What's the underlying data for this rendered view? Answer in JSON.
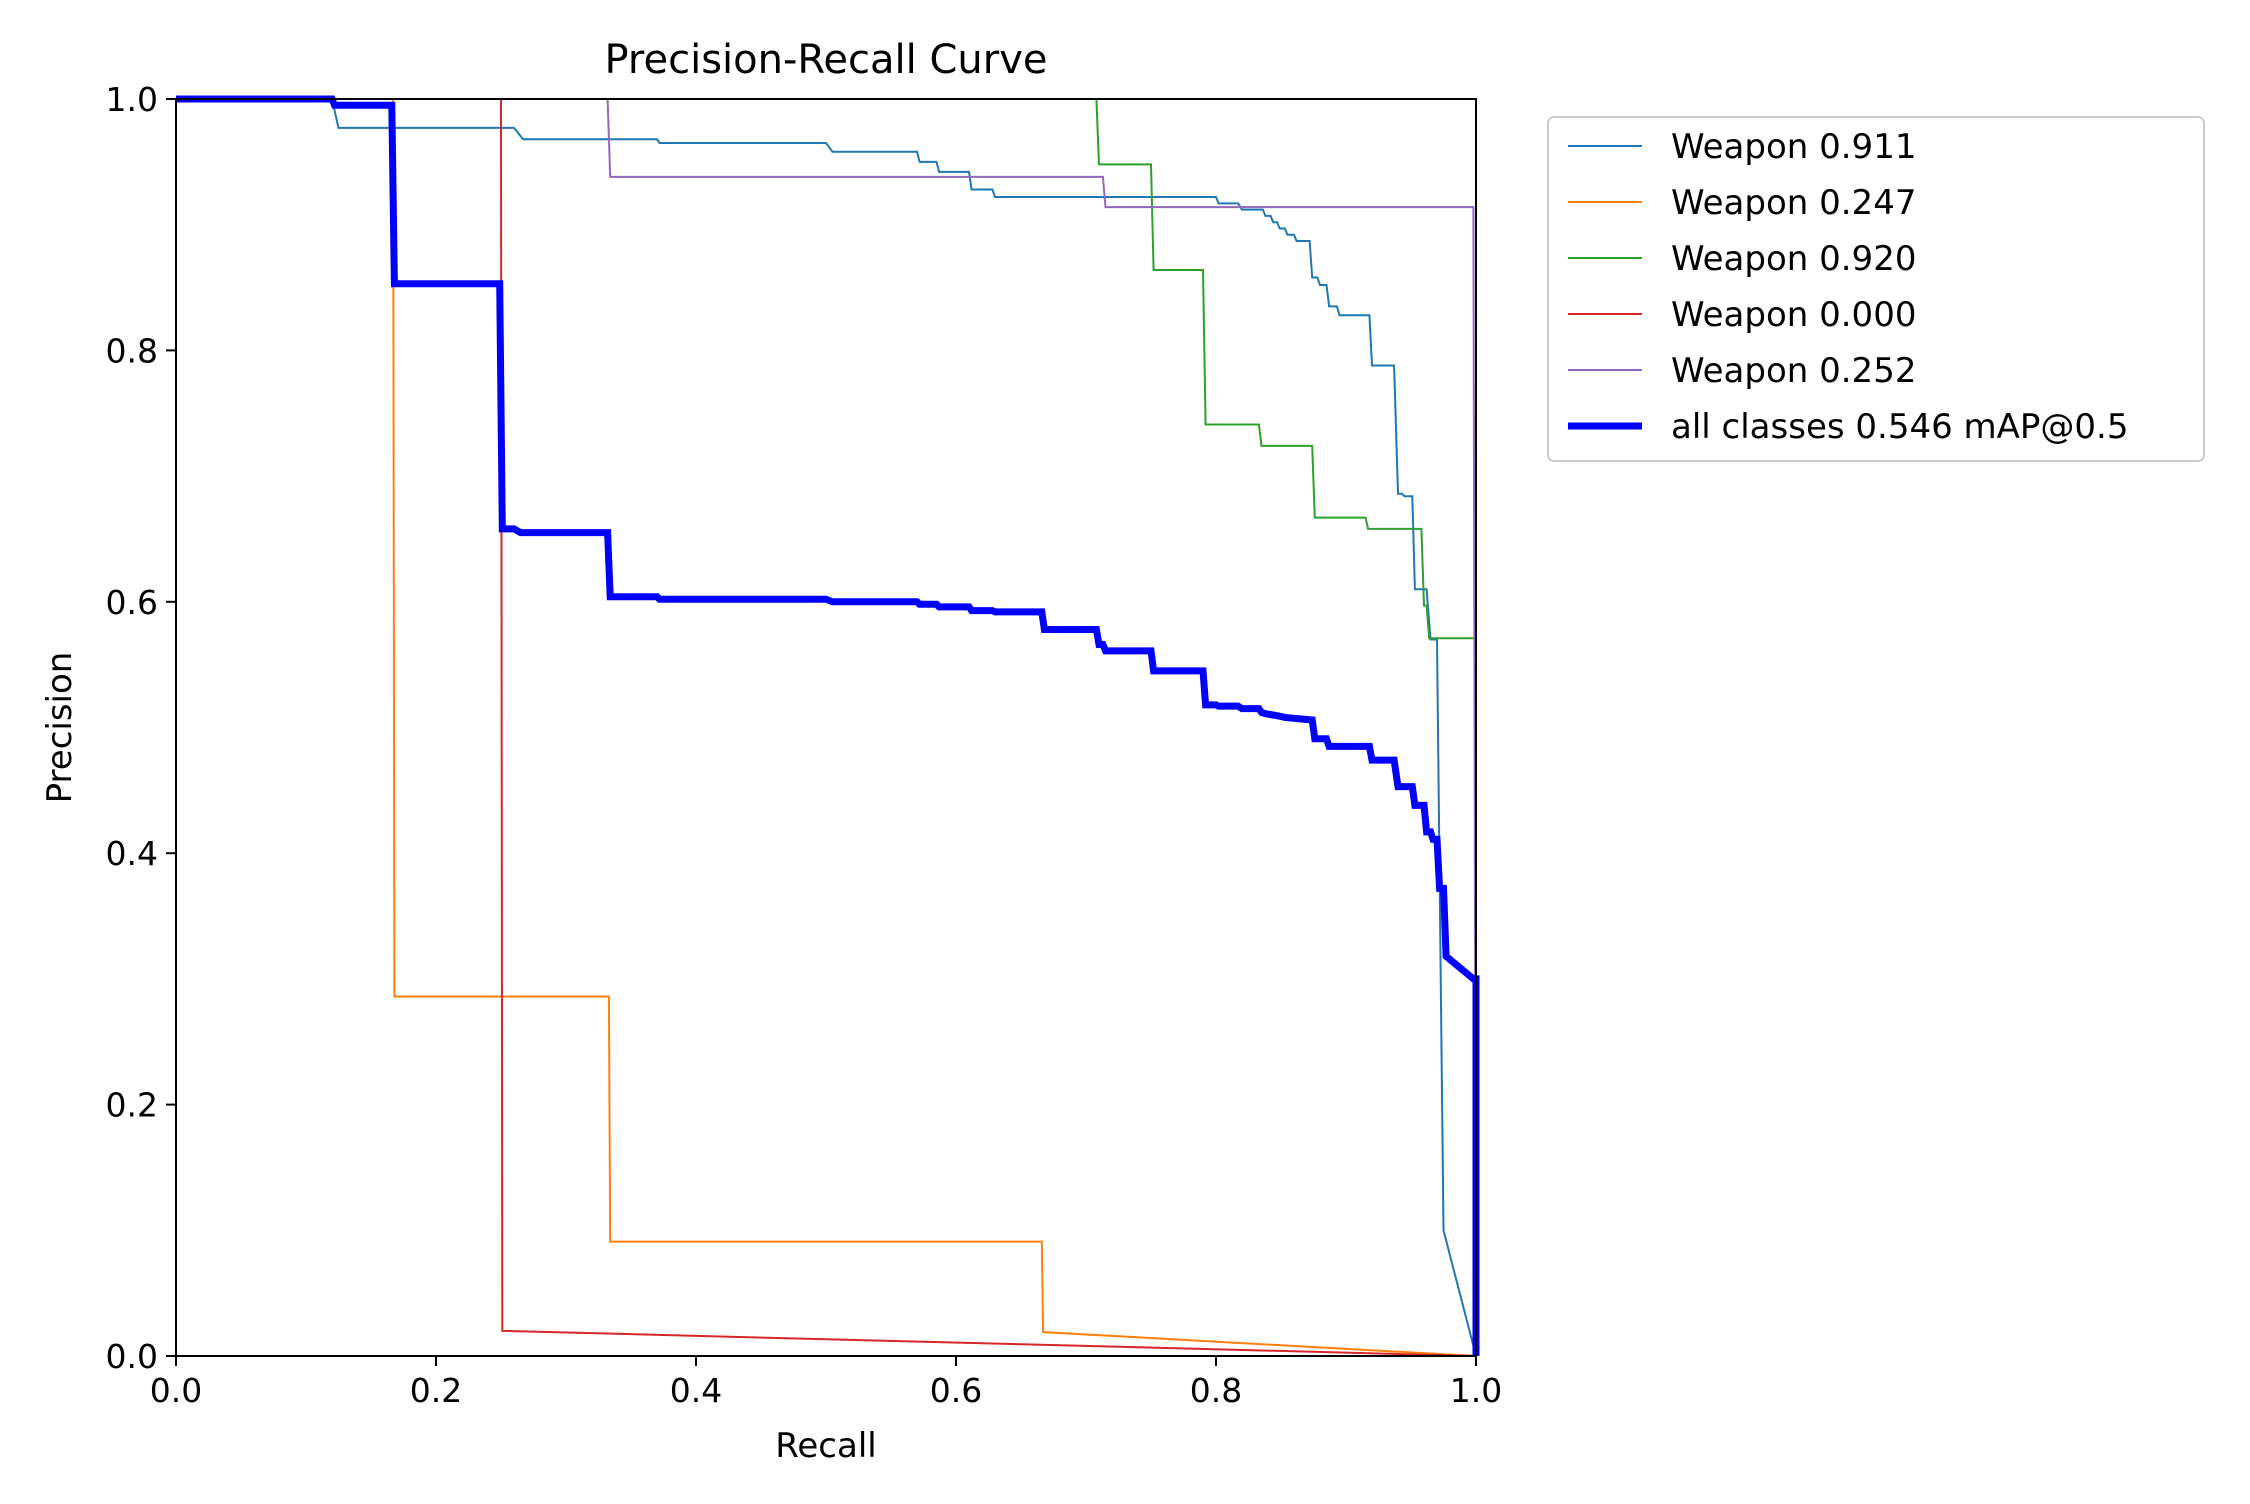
{
  "chart_data": {
    "type": "line",
    "title": "Precision-Recall Curve",
    "xlabel": "Recall",
    "ylabel": "Precision",
    "xlim": [
      0,
      1
    ],
    "ylim": [
      0,
      1
    ],
    "xticks": [
      "0.0",
      "0.2",
      "0.4",
      "0.6",
      "0.8",
      "1.0"
    ],
    "yticks": [
      "0.0",
      "0.2",
      "0.4",
      "0.6",
      "0.8",
      "1.0"
    ],
    "grid": false,
    "legend_position": "outside-top-right",
    "series": [
      {
        "name": "Weapon 0.911",
        "color": "#1f77b4",
        "points": [
          [
            0,
            1
          ],
          [
            0.12,
            1
          ],
          [
            0.125,
            0.977
          ],
          [
            0.26,
            0.977
          ],
          [
            0.267,
            0.968
          ],
          [
            0.37,
            0.968
          ],
          [
            0.372,
            0.965
          ],
          [
            0.5,
            0.965
          ],
          [
            0.505,
            0.958
          ],
          [
            0.57,
            0.958
          ],
          [
            0.572,
            0.95
          ],
          [
            0.585,
            0.95
          ],
          [
            0.587,
            0.942
          ],
          [
            0.61,
            0.942
          ],
          [
            0.612,
            0.928
          ],
          [
            0.628,
            0.928
          ],
          [
            0.63,
            0.922
          ],
          [
            0.8,
            0.922
          ],
          [
            0.802,
            0.917
          ],
          [
            0.817,
            0.917
          ],
          [
            0.82,
            0.912
          ],
          [
            0.836,
            0.912
          ],
          [
            0.838,
            0.907
          ],
          [
            0.842,
            0.907
          ],
          [
            0.844,
            0.902
          ],
          [
            0.847,
            0.902
          ],
          [
            0.849,
            0.897
          ],
          [
            0.853,
            0.897
          ],
          [
            0.855,
            0.892
          ],
          [
            0.86,
            0.892
          ],
          [
            0.862,
            0.887
          ],
          [
            0.872,
            0.887
          ],
          [
            0.874,
            0.858
          ],
          [
            0.878,
            0.858
          ],
          [
            0.88,
            0.852
          ],
          [
            0.885,
            0.852
          ],
          [
            0.887,
            0.835
          ],
          [
            0.893,
            0.835
          ],
          [
            0.895,
            0.828
          ],
          [
            0.918,
            0.828
          ],
          [
            0.92,
            0.788
          ],
          [
            0.937,
            0.788
          ],
          [
            0.94,
            0.686
          ],
          [
            0.943,
            0.686
          ],
          [
            0.945,
            0.684
          ],
          [
            0.951,
            0.684
          ],
          [
            0.953,
            0.61
          ],
          [
            0.962,
            0.61
          ],
          [
            0.965,
            0.57
          ],
          [
            0.97,
            0.57
          ],
          [
            0.975,
            0.1
          ],
          [
            1,
            0
          ]
        ]
      },
      {
        "name": "Weapon 0.247",
        "color": "#ff7f0e",
        "points": [
          [
            0,
            1
          ],
          [
            0.167,
            1
          ],
          [
            0.168,
            0.286
          ],
          [
            0.333,
            0.286
          ],
          [
            0.334,
            0.091
          ],
          [
            0.666,
            0.091
          ],
          [
            0.667,
            0.019
          ],
          [
            1,
            0
          ]
        ]
      },
      {
        "name": "Weapon 0.920",
        "color": "#2ca02c",
        "points": [
          [
            0.708,
            1
          ],
          [
            0.71,
            0.948
          ],
          [
            0.75,
            0.948
          ],
          [
            0.752,
            0.864
          ],
          [
            0.79,
            0.864
          ],
          [
            0.792,
            0.741
          ],
          [
            0.833,
            0.741
          ],
          [
            0.835,
            0.724
          ],
          [
            0.874,
            0.724
          ],
          [
            0.876,
            0.667
          ],
          [
            0.915,
            0.667
          ],
          [
            0.917,
            0.658
          ],
          [
            0.958,
            0.658
          ],
          [
            0.96,
            0.597
          ],
          [
            0.962,
            0.597
          ],
          [
            0.964,
            0.571
          ],
          [
            1,
            0.571
          ],
          [
            1,
            0
          ]
        ]
      },
      {
        "name": "Weapon 0.000",
        "color": "#d62728",
        "points": [
          [
            0.25,
            1
          ],
          [
            0.251,
            0.02
          ],
          [
            1,
            0
          ]
        ]
      },
      {
        "name": "Weapon 0.252",
        "color": "#9467bd",
        "points": [
          [
            0.332,
            1
          ],
          [
            0.334,
            0.938
          ],
          [
            0.713,
            0.938
          ],
          [
            0.715,
            0.914
          ],
          [
            0.998,
            0.914
          ],
          [
            1,
            0
          ]
        ]
      },
      {
        "name": "all classes 0.546 mAP@0.5",
        "color": "#0000ff",
        "bold": true,
        "points": [
          [
            0,
            1
          ],
          [
            0.12,
            1
          ],
          [
            0.122,
            0.995
          ],
          [
            0.166,
            0.995
          ],
          [
            0.168,
            0.853
          ],
          [
            0.249,
            0.853
          ],
          [
            0.251,
            0.658
          ],
          [
            0.26,
            0.658
          ],
          [
            0.265,
            0.655
          ],
          [
            0.332,
            0.655
          ],
          [
            0.334,
            0.604
          ],
          [
            0.37,
            0.604
          ],
          [
            0.372,
            0.602
          ],
          [
            0.5,
            0.602
          ],
          [
            0.505,
            0.6
          ],
          [
            0.57,
            0.6
          ],
          [
            0.572,
            0.598
          ],
          [
            0.585,
            0.598
          ],
          [
            0.587,
            0.596
          ],
          [
            0.61,
            0.596
          ],
          [
            0.612,
            0.593
          ],
          [
            0.628,
            0.593
          ],
          [
            0.63,
            0.592
          ],
          [
            0.666,
            0.592
          ],
          [
            0.668,
            0.578
          ],
          [
            0.708,
            0.578
          ],
          [
            0.71,
            0.566
          ],
          [
            0.713,
            0.566
          ],
          [
            0.715,
            0.561
          ],
          [
            0.75,
            0.561
          ],
          [
            0.752,
            0.545
          ],
          [
            0.79,
            0.545
          ],
          [
            0.792,
            0.518
          ],
          [
            0.8,
            0.518
          ],
          [
            0.802,
            0.517
          ],
          [
            0.817,
            0.517
          ],
          [
            0.82,
            0.515
          ],
          [
            0.833,
            0.515
          ],
          [
            0.835,
            0.512
          ],
          [
            0.838,
            0.511
          ],
          [
            0.849,
            0.509
          ],
          [
            0.853,
            0.508
          ],
          [
            0.874,
            0.506
          ],
          [
            0.876,
            0.491
          ],
          [
            0.885,
            0.491
          ],
          [
            0.887,
            0.485
          ],
          [
            0.918,
            0.485
          ],
          [
            0.92,
            0.474
          ],
          [
            0.937,
            0.474
          ],
          [
            0.94,
            0.453
          ],
          [
            0.951,
            0.453
          ],
          [
            0.953,
            0.438
          ],
          [
            0.96,
            0.438
          ],
          [
            0.962,
            0.417
          ],
          [
            0.965,
            0.417
          ],
          [
            0.967,
            0.411
          ],
          [
            0.97,
            0.411
          ],
          [
            0.972,
            0.372
          ],
          [
            0.975,
            0.372
          ],
          [
            0.977,
            0.318
          ],
          [
            0.998,
            0.3
          ],
          [
            1,
            0.3
          ],
          [
            1,
            0
          ]
        ]
      }
    ]
  }
}
